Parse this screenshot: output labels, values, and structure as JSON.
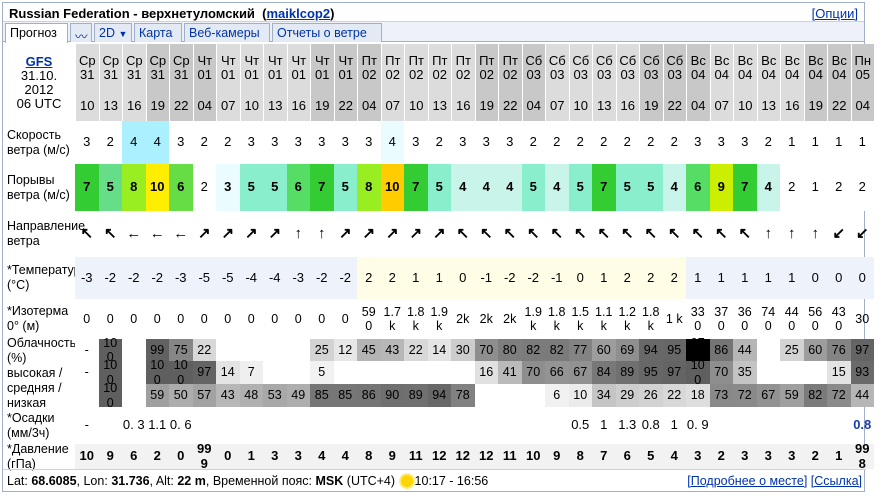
{
  "header": {
    "location": "Russian Federation - верхнетуломский",
    "station_link": "maiklcop2",
    "options_link": "[Опции]"
  },
  "tabs": [
    "Прогноз",
    "2D",
    "Карта",
    "Веб-камеры",
    "Отчеты о ветре"
  ],
  "model": {
    "name": "GFS",
    "date": "31.10. 2012",
    "time": "06 UTC"
  },
  "row_labels": {
    "wind": "Скорость ветра (м/с)",
    "gust": "Порывы ветра (м/с)",
    "direction": "Направление ветра",
    "temp": "*Температура (°C)",
    "iso": "*Изотерма 0° (м)",
    "cloud": "Облачность (%) высокая / средняя / низкая",
    "precip": "*Осадки (мм/3ч)",
    "pressure": "*Давление (гПа)"
  },
  "columns": [
    {
      "day": "Ср",
      "date": "31",
      "hour": "10",
      "wind": "3",
      "gust": "7",
      "gust_color": "#33cc33",
      "dir": "↖",
      "temp": "-3",
      "iso": "0",
      "ch": "-",
      "cm": "-",
      "cl": "",
      "precip": "-",
      "press": "10"
    },
    {
      "day": "Ср",
      "date": "31",
      "hour": "13",
      "wind": "2",
      "gust": "5",
      "gust_color": "#66dd88",
      "dir": "↖",
      "temp": "-2",
      "iso": "0",
      "ch": "10 0",
      "cm": "10 0",
      "cl": "10 0",
      "precip": "",
      "press": "9"
    },
    {
      "day": "Ср",
      "date": "31",
      "hour": "16",
      "wind": "4",
      "wind_color": "#aaf0ff",
      "gust": "8",
      "gust_color": "#99ee22",
      "dir": "←",
      "temp": "-2",
      "iso": "0",
      "ch": "",
      "cm": "",
      "cl": "",
      "precip": "0. 3",
      "press": "6"
    },
    {
      "day": "Ср",
      "date": "31",
      "hour": "19",
      "wind": "4",
      "wind_color": "#aaf0ff",
      "gust": "10",
      "gust_color": "#ffee00",
      "dir": "←",
      "temp": "-2",
      "iso": "0",
      "ch": "99",
      "cm": "10 0",
      "cl": "59",
      "precip": "1.1",
      "press": "2"
    },
    {
      "day": "Ср",
      "date": "31",
      "hour": "22",
      "wind": "3",
      "gust": "6",
      "gust_color": "#66dd44",
      "dir": "←",
      "temp": "-3",
      "iso": "0",
      "ch": "75",
      "cm": "10 0",
      "cl": "50",
      "precip": "0. 6",
      "press": "0"
    },
    {
      "day": "Чт",
      "date": "01",
      "hour": "04",
      "wind": "2",
      "gust": "2",
      "gust_color": "",
      "dir": "↗",
      "temp": "-5",
      "iso": "0",
      "ch": "22",
      "cm": "97",
      "cl": "57",
      "precip": "",
      "press": "99 9"
    },
    {
      "day": "Чт",
      "date": "01",
      "hour": "07",
      "wind": "2",
      "gust": "3",
      "gust_color": "#eafcff",
      "dir": "↗",
      "temp": "-5",
      "iso": "0",
      "ch": "",
      "cm": "14",
      "cl": "43",
      "precip": "",
      "press": "0"
    },
    {
      "day": "Чт",
      "date": "01",
      "hour": "10",
      "wind": "3",
      "gust": "5",
      "gust_color": "#88eecc",
      "dir": "↗",
      "temp": "-4",
      "iso": "0",
      "ch": "",
      "cm": "7",
      "cl": "48",
      "precip": "",
      "press": "1"
    },
    {
      "day": "Чт",
      "date": "01",
      "hour": "13",
      "wind": "3",
      "gust": "5",
      "gust_color": "#88eecc",
      "dir": "↗",
      "temp": "-4",
      "iso": "0",
      "ch": "",
      "cm": "",
      "cl": "53",
      "precip": "",
      "press": "3"
    },
    {
      "day": "Чт",
      "date": "01",
      "hour": "16",
      "wind": "3",
      "gust": "6",
      "gust_color": "#55dd66",
      "dir": "↑",
      "temp": "-3",
      "iso": "0",
      "ch": "",
      "cm": "",
      "cl": "49",
      "precip": "",
      "press": "3"
    },
    {
      "day": "Чт",
      "date": "01",
      "hour": "19",
      "wind": "3",
      "gust": "7",
      "gust_color": "#33cc33",
      "dir": "↑",
      "temp": "-2",
      "iso": "0",
      "ch": "25",
      "cm": "5",
      "cl": "85",
      "precip": "",
      "press": "4"
    },
    {
      "day": "Чт",
      "date": "01",
      "hour": "22",
      "wind": "3",
      "gust": "5",
      "gust_color": "#88eecc",
      "dir": "↗",
      "temp": "-2",
      "iso": "0",
      "ch": "12",
      "cm": "",
      "cl": "85",
      "precip": "",
      "press": "4"
    },
    {
      "day": "Пт",
      "date": "02",
      "hour": "04",
      "wind": "3",
      "gust": "8",
      "gust_color": "#99ee22",
      "dir": "↗",
      "temp": "2",
      "iso": "59 0",
      "ch": "45",
      "cm": "",
      "cl": "86",
      "precip": "",
      "press": "8"
    },
    {
      "day": "Пт",
      "date": "02",
      "hour": "07",
      "wind": "4",
      "wind_color": "#eafcff",
      "gust": "10",
      "gust_color": "#ffcc00",
      "dir": "↗",
      "temp": "2",
      "iso": "1.7 k",
      "ch": "43",
      "cm": "",
      "cl": "90",
      "precip": "",
      "press": "9"
    },
    {
      "day": "Пт",
      "date": "02",
      "hour": "10",
      "wind": "3",
      "gust": "7",
      "gust_color": "#33cc33",
      "dir": "↗",
      "temp": "1",
      "iso": "1.8 k",
      "ch": "22",
      "cm": "",
      "cl": "89",
      "precip": "",
      "press": "11"
    },
    {
      "day": "Пт",
      "date": "02",
      "hour": "13",
      "wind": "2",
      "gust": "5",
      "gust_color": "#88eecc",
      "dir": "↗",
      "temp": "1",
      "iso": "1.9 k",
      "ch": "14",
      "cm": "",
      "cl": "94",
      "precip": "",
      "press": "12"
    },
    {
      "day": "Пт",
      "date": "02",
      "hour": "16",
      "wind": "3",
      "gust": "4",
      "gust_color": "#c8f4ea",
      "dir": "↖",
      "temp": "0",
      "iso": "2k",
      "ch": "30",
      "cm": "",
      "cl": "78",
      "precip": "",
      "press": "12"
    },
    {
      "day": "Пт",
      "date": "02",
      "hour": "19",
      "wind": "3",
      "gust": "4",
      "gust_color": "#c8f4ea",
      "dir": "↖",
      "temp": "-1",
      "iso": "2k",
      "ch": "70",
      "cm": "16",
      "cl": "",
      "precip": "",
      "press": "12"
    },
    {
      "day": "Пт",
      "date": "02",
      "hour": "22",
      "wind": "3",
      "gust": "4",
      "gust_color": "#c8f4ea",
      "dir": "↖",
      "temp": "-2",
      "iso": "2k",
      "ch": "80",
      "cm": "41",
      "cl": "",
      "precip": "",
      "press": "11"
    },
    {
      "day": "Сб",
      "date": "03",
      "hour": "04",
      "wind": "2",
      "gust": "5",
      "gust_color": "#88eecc",
      "dir": "↖",
      "temp": "-2",
      "iso": "1.9 k",
      "ch": "82",
      "cm": "70",
      "cl": "",
      "precip": "",
      "press": "10"
    },
    {
      "day": "Сб",
      "date": "03",
      "hour": "07",
      "wind": "2",
      "gust": "4",
      "gust_color": "#c8f4ea",
      "dir": "↖",
      "temp": "-1",
      "iso": "1.8 k",
      "ch": "82",
      "cm": "66",
      "cl": "6",
      "precip": "",
      "press": "9"
    },
    {
      "day": "Сб",
      "date": "03",
      "hour": "10",
      "wind": "2",
      "gust": "5",
      "gust_color": "#88eecc",
      "dir": "↖",
      "temp": "0",
      "iso": "1.5 k",
      "ch": "77",
      "cm": "67",
      "cl": "10",
      "precip": "0.5",
      "press": "8"
    },
    {
      "day": "Сб",
      "date": "03",
      "hour": "13",
      "wind": "2",
      "gust": "7",
      "gust_color": "#33cc33",
      "dir": "↖",
      "temp": "1",
      "iso": "1.1 k",
      "ch": "60",
      "cm": "84",
      "cl": "34",
      "precip": "1",
      "press": "7"
    },
    {
      "day": "Сб",
      "date": "03",
      "hour": "16",
      "wind": "2",
      "gust": "5",
      "gust_color": "#88eecc",
      "dir": "↖",
      "temp": "2",
      "iso": "1.2 k",
      "ch": "69",
      "cm": "89",
      "cl": "29",
      "precip": "1.3",
      "press": "6"
    },
    {
      "day": "Сб",
      "date": "03",
      "hour": "19",
      "wind": "2",
      "gust": "5",
      "gust_color": "#88eecc",
      "dir": "↖",
      "temp": "2",
      "iso": "1.8 k",
      "ch": "94",
      "cm": "95",
      "cl": "26",
      "precip": "0.8",
      "press": "5"
    },
    {
      "day": "Сб",
      "date": "03",
      "hour": "22",
      "wind": "2",
      "gust": "4",
      "gust_color": "#c8f4ea",
      "dir": "↖",
      "temp": "2",
      "iso": "1 k",
      "ch": "95",
      "cm": "97",
      "cl": "22",
      "precip": "1",
      "press": "4"
    },
    {
      "day": "Вс",
      "date": "04",
      "hour": "04",
      "wind": "3",
      "gust": "6",
      "gust_color": "#55dd66",
      "dir": "↖",
      "temp": "1",
      "iso": "33 0",
      "ch": "97 0",
      "cm": "10 0",
      "cl": "18",
      "precip": "0. 9",
      "press": "3"
    },
    {
      "day": "Вс",
      "date": "04",
      "hour": "07",
      "wind": "3",
      "gust": "9",
      "gust_color": "#ccee00",
      "dir": "↖",
      "temp": "1",
      "iso": "37 0",
      "ch": "86",
      "cm": "70",
      "cl": "73",
      "precip": "",
      "press": "2"
    },
    {
      "day": "Вс",
      "date": "04",
      "hour": "10",
      "wind": "3",
      "gust": "7",
      "gust_color": "#33cc33",
      "dir": "↖",
      "temp": "1",
      "iso": "36 0",
      "ch": "44",
      "cm": "35",
      "cl": "72",
      "precip": "",
      "press": "3"
    },
    {
      "day": "Вс",
      "date": "04",
      "hour": "13",
      "wind": "2",
      "gust": "4",
      "gust_color": "#c8f4ea",
      "dir": "↑",
      "temp": "1",
      "iso": "74 0",
      "ch": "",
      "cm": "",
      "cl": "67",
      "precip": "",
      "press": "3"
    },
    {
      "day": "Вс",
      "date": "04",
      "hour": "16",
      "wind": "1",
      "gust": "2",
      "gust_color": "",
      "dir": "↑",
      "temp": "1",
      "iso": "44 0",
      "ch": "25",
      "cm": "",
      "cl": "59",
      "precip": "",
      "press": "3"
    },
    {
      "day": "Вс",
      "date": "04",
      "hour": "19",
      "wind": "1",
      "gust": "1",
      "gust_color": "",
      "dir": "↑",
      "temp": "0",
      "iso": "56 0",
      "ch": "60",
      "cm": "",
      "cl": "82",
      "precip": "",
      "press": "2"
    },
    {
      "day": "Вс",
      "date": "04",
      "hour": "22",
      "wind": "1",
      "gust": "2",
      "gust_color": "",
      "dir": "↙",
      "temp": "0",
      "iso": "43 0",
      "ch": "76",
      "cm": "15",
      "cl": "72",
      "precip": "",
      "press": "1"
    },
    {
      "day": "Пн",
      "date": "05",
      "hour": "04",
      "wind": "1",
      "gust": "2",
      "gust_color": "",
      "dir": "↙",
      "temp": "0",
      "iso": "30",
      "ch": "97",
      "cm": "93",
      "cl": "44",
      "precip": "0.8",
      "precip_bold": true,
      "press": "99 8"
    }
  ],
  "footer": {
    "lat_label": "Lat:",
    "lat": "68.6085",
    "lon_label": "Lon:",
    "lon": "31.736",
    "alt_label": "Alt:",
    "alt": "22 m",
    "tz_label": "Временной пояс:",
    "tz": "MSK",
    "tz_offset": "(UTC+4)",
    "sun_times": "10:17 - 16:56",
    "link_more": "[Подробнее о месте]",
    "link_ref": "[Ссылка]"
  }
}
